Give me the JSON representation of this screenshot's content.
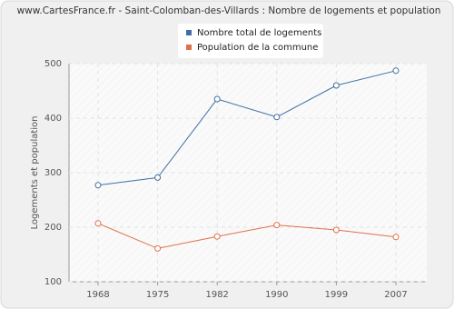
{
  "chart_data": {
    "type": "line",
    "title": "www.CartesFrance.fr - Saint-Colomban-des-Villards : Nombre de logements et population",
    "y_label": "Logements et population",
    "categories": [
      "1968",
      "1975",
      "1982",
      "1990",
      "1999",
      "2007"
    ],
    "series": [
      {
        "name": "Nombre total de logements",
        "color": "#3e6fa3",
        "values": [
          277,
          291,
          435,
          402,
          460,
          487
        ]
      },
      {
        "name": "Population de la commune",
        "color": "#e0704a",
        "values": [
          207,
          161,
          183,
          204,
          195,
          182
        ]
      }
    ],
    "ylim": [
      100,
      500
    ],
    "yticks": [
      100,
      200,
      300,
      400,
      500
    ],
    "grid": true
  }
}
